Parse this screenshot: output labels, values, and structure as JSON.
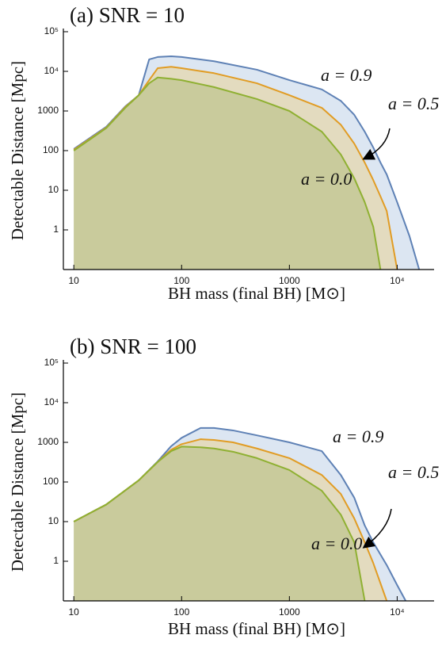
{
  "chart_data": [
    {
      "type": "area",
      "title": "(a) SNR = 10",
      "xlabel": "BH mass (final BH) [M⊙]",
      "ylabel": "Detectable Distance [Mpc]",
      "log_x": true,
      "log_y": true,
      "xlim": [
        8,
        22000
      ],
      "ylim": [
        0.1,
        100000
      ],
      "xticks": [
        10,
        100,
        1000,
        {
          "value": 10000,
          "label": "10⁴"
        }
      ],
      "yticks": [
        1,
        10,
        100,
        1000,
        {
          "value": 10000,
          "label": "10⁴"
        },
        {
          "value": 100000,
          "label": "10⁵"
        }
      ],
      "x": [
        10,
        20,
        30,
        40,
        50,
        60,
        80,
        100,
        200,
        500,
        1000,
        2000,
        3000,
        4000,
        5000,
        6000,
        7000,
        8000,
        10000,
        13000,
        16000
      ],
      "series": [
        {
          "name": "a = 0.9",
          "color": "#5e81b5",
          "fill": "#dce6f2",
          "values": [
            110,
            400,
            1300,
            2500,
            20000,
            23000,
            24000,
            23000,
            18000,
            11000,
            6000,
            3500,
            1800,
            800,
            300,
            120,
            50,
            25,
            5,
            0.7,
            0.1
          ]
        },
        {
          "name": "a = 0.5",
          "color": "#e19c24",
          "fill": "#e3dbbf",
          "values": [
            105,
            380,
            1250,
            2500,
            6000,
            12000,
            13000,
            12000,
            9000,
            5000,
            2500,
            1200,
            450,
            150,
            50,
            18,
            7,
            3,
            0.1,
            null,
            null
          ]
        },
        {
          "name": "a = 0.0",
          "color": "#8fb032",
          "fill": "#c9cb9c",
          "values": [
            100,
            370,
            1200,
            2500,
            5000,
            7000,
            6500,
            6000,
            4000,
            2000,
            1000,
            300,
            80,
            20,
            5,
            1.2,
            0.1,
            null,
            null,
            null,
            null
          ]
        }
      ]
    },
    {
      "type": "area",
      "title": "(b) SNR = 100",
      "xlabel": "BH mass (final BH) [M⊙]",
      "ylabel": "Detectable Distance [Mpc]",
      "log_x": true,
      "log_y": true,
      "xlim": [
        8,
        22000
      ],
      "ylim": [
        0.1,
        100000
      ],
      "xticks": [
        10,
        100,
        1000,
        {
          "value": 10000,
          "label": "10⁴"
        }
      ],
      "yticks": [
        1,
        10,
        100,
        1000,
        {
          "value": 10000,
          "label": "10⁴"
        },
        {
          "value": 100000,
          "label": "10⁵"
        }
      ],
      "x": [
        10,
        20,
        40,
        60,
        80,
        100,
        150,
        200,
        300,
        500,
        1000,
        2000,
        3000,
        4000,
        5000,
        6000,
        8000,
        10000,
        12000
      ],
      "series": [
        {
          "name": "a = 0.9",
          "color": "#5e81b5",
          "fill": "#dce6f2",
          "values": [
            10,
            27,
            110,
            330,
            800,
            1300,
            2300,
            2300,
            2000,
            1500,
            1000,
            600,
            150,
            40,
            8,
            3,
            0.8,
            0.25,
            0.1
          ]
        },
        {
          "name": "a = 0.5",
          "color": "#e19c24",
          "fill": "#e3dbbf",
          "values": [
            10,
            27,
            110,
            320,
            650,
            900,
            1200,
            1150,
            1000,
            700,
            400,
            150,
            50,
            12,
            3,
            0.9,
            0.1,
            null,
            null
          ]
        },
        {
          "name": "a = 0.0",
          "color": "#8fb032",
          "fill": "#c9cb9c",
          "values": [
            10,
            27,
            110,
            320,
            600,
            780,
            750,
            700,
            580,
            400,
            200,
            60,
            15,
            3,
            0.1,
            null,
            null,
            null,
            null
          ]
        }
      ]
    }
  ]
}
